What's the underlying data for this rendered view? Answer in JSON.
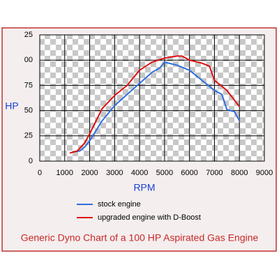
{
  "chart_data": {
    "type": "line",
    "title": "Generic Dyno Chart of a 100 HP Aspirated Gas Engine",
    "x_label": "RPM",
    "y_label": "HP",
    "xlim": [
      0,
      9000
    ],
    "xticks": [
      0,
      1000,
      2000,
      3000,
      4000,
      5000,
      6000,
      7000,
      8000,
      9000
    ],
    "ylim": [
      0,
      125
    ],
    "yticks": [
      0,
      25,
      50,
      75,
      {
        "value": 100,
        "label": "00"
      },
      {
        "value": 125,
        "label": "25"
      }
    ],
    "grid": true,
    "legend": "bottom",
    "series": [
      {
        "name": "stock engine",
        "color": "#2f6fe0",
        "x": [
          1300,
          1600,
          1800,
          2000,
          2500,
          3000,
          3500,
          4000,
          4500,
          4800,
          5000,
          5500,
          6000,
          6500,
          7000,
          7300,
          7500,
          7800,
          8000
        ],
        "values": [
          9,
          10,
          14,
          20,
          40,
          55,
          66,
          77,
          88,
          92,
          98,
          95,
          90,
          80,
          70,
          66,
          51,
          49,
          40
        ]
      },
      {
        "name": "upgraded engine with D-Boost",
        "color": "#e01010",
        "x": [
          1200,
          1500,
          1800,
          2000,
          2500,
          3000,
          3500,
          4000,
          4500,
          5000,
          5500,
          5700,
          6000,
          6500,
          6800,
          7000,
          7500,
          8000
        ],
        "values": [
          8,
          10,
          18,
          27,
          52,
          65,
          75,
          90,
          98,
          102,
          104,
          104,
          100,
          97,
          94,
          80,
          70,
          54
        ]
      }
    ]
  }
}
